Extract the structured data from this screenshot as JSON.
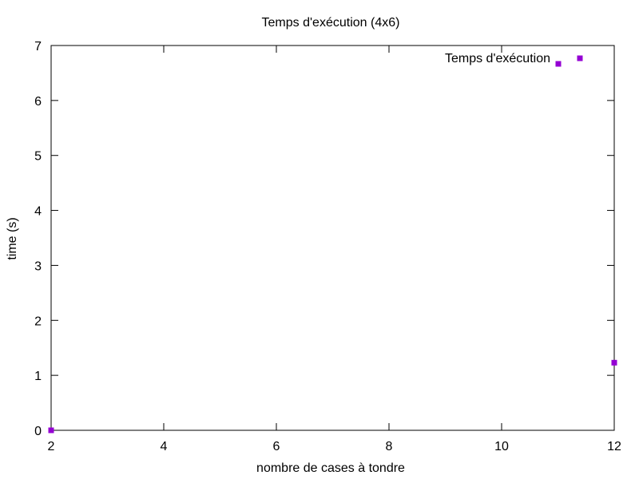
{
  "chart_data": {
    "type": "scatter",
    "title": "Temps d'exécution (4x6)",
    "xlabel": "nombre de cases à tondre",
    "ylabel": "time (s)",
    "xlim": [
      2,
      12
    ],
    "ylim": [
      0,
      7
    ],
    "xticks": [
      "2",
      "4",
      "6",
      "8",
      "10",
      "12"
    ],
    "yticks": [
      "0",
      "1",
      "2",
      "3",
      "4",
      "5",
      "6",
      "7"
    ],
    "grid": false,
    "legend_position": "top-right",
    "series": [
      {
        "name": "Temps d'exécution",
        "color": "#9400d3",
        "marker": "square",
        "x": [
          2,
          12
        ],
        "y": [
          0,
          1.23
        ]
      }
    ]
  }
}
